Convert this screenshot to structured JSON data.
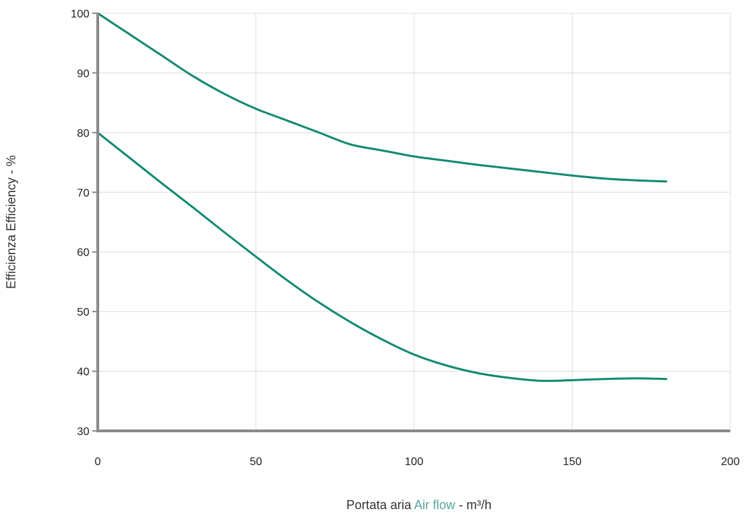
{
  "chart_data": {
    "type": "line",
    "title": "",
    "xlabel": {
      "part1": "Portata aria ",
      "part2": "Air flow",
      "part3": " - m³/h"
    },
    "ylabel": "Efficienza Efficiency - %",
    "xlim": [
      0,
      200
    ],
    "ylim": [
      30,
      100
    ],
    "xticks": [
      0,
      50,
      100,
      150,
      200
    ],
    "yticks": [
      30,
      40,
      50,
      60,
      70,
      80,
      90,
      100
    ],
    "grid": true,
    "legend": "none",
    "colors": {
      "line": "#138a72",
      "grid": "#dcdcdc",
      "axis": "#8a8a8a",
      "accent_text": "#5aa79a"
    },
    "series": [
      {
        "x": [
          0,
          10,
          20,
          30,
          40,
          50,
          60,
          70,
          80,
          90,
          100,
          110,
          120,
          130,
          140,
          150,
          160,
          170,
          180
        ],
        "values": [
          100,
          96.5,
          93,
          89.5,
          86.5,
          84,
          82,
          80,
          78,
          77,
          76,
          75.3,
          74.6,
          74,
          73.4,
          72.8,
          72.3,
          72,
          71.8
        ]
      },
      {
        "x": [
          0,
          10,
          20,
          30,
          40,
          50,
          60,
          70,
          80,
          90,
          100,
          110,
          120,
          130,
          140,
          150,
          160,
          170,
          180
        ],
        "values": [
          80,
          75.8,
          71.6,
          67.5,
          63.3,
          59.2,
          55.2,
          51.5,
          48.2,
          45.3,
          42.8,
          41,
          39.7,
          38.9,
          38.4,
          38.5,
          38.7,
          38.8,
          38.7
        ]
      }
    ]
  }
}
